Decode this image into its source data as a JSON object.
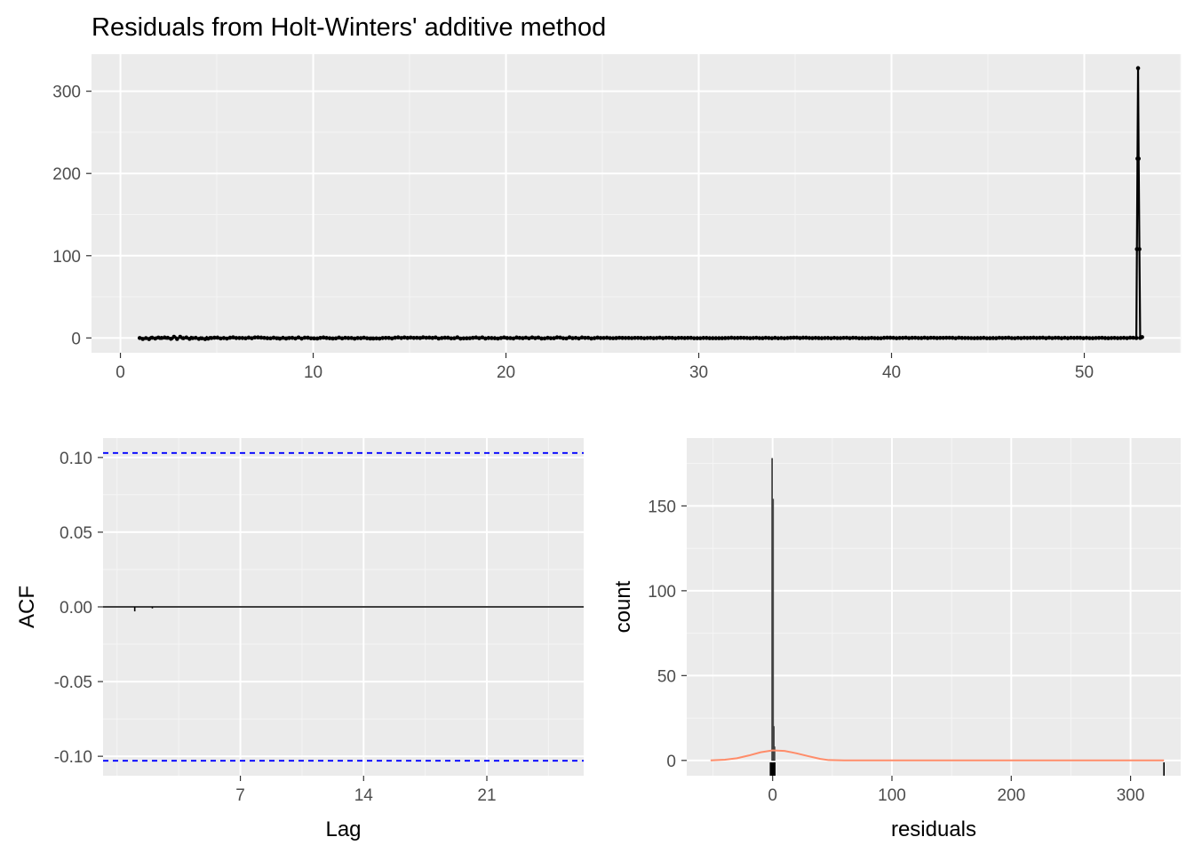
{
  "title": "Residuals from Holt-Winters' additive method",
  "chart_data": [
    {
      "type": "line",
      "xlabel": "",
      "ylabel": "",
      "xlim": [
        -1.5,
        55
      ],
      "ylim": [
        -18,
        345
      ],
      "x_ticks": [
        0,
        10,
        20,
        30,
        40,
        50
      ],
      "y_ticks": [
        0,
        100,
        200,
        300
      ],
      "grid": true,
      "noise_range": [
        1.0,
        52.7
      ],
      "spike": {
        "x": [
          52.7,
          52.73,
          52.76,
          52.79,
          52.82,
          52.86,
          52.9,
          53.0
        ],
        "y": [
          0,
          108,
          218,
          328,
          218,
          108,
          0,
          1
        ]
      }
    },
    {
      "type": "bar",
      "xlabel": "Lag",
      "ylabel": "ACF",
      "xlim": [
        -0.8,
        26.5
      ],
      "ylim": [
        -0.113,
        0.113
      ],
      "x_ticks": [
        7,
        14,
        21
      ],
      "y_tick_values": [
        0.1,
        0.05,
        0.0,
        -0.05,
        -0.1
      ],
      "y_tick_labels": [
        "0.10",
        "0.05",
        "0.00",
        "-0.05",
        "-0.10"
      ],
      "lags": [
        1,
        2,
        3,
        4,
        5,
        6,
        7,
        8,
        9,
        10,
        11,
        12,
        13,
        14,
        15,
        16,
        17,
        18,
        19,
        20,
        21,
        22,
        23,
        24,
        25,
        26
      ],
      "values": [
        -0.003,
        -0.001,
        0.0,
        0.0,
        0.0,
        0.0,
        0.0,
        0.0,
        0.0,
        0.0,
        0.0,
        0.0,
        0.0,
        0.0,
        0.0,
        0.0,
        0.0,
        0.0,
        0.0,
        0.0,
        0.0,
        0.0,
        0.0,
        0.0,
        0.0,
        0.0
      ],
      "ci": 0.103,
      "ci_color": "#0000ff",
      "grid": true
    },
    {
      "type": "bar",
      "xlabel": "residuals",
      "ylabel": "count",
      "xlim": [
        -72,
        342
      ],
      "ylim": [
        -9,
        190
      ],
      "x_ticks": [
        0,
        100,
        200,
        300
      ],
      "y_ticks": [
        0,
        50,
        100,
        150
      ],
      "bins": [
        {
          "x": -0.4,
          "count": 178
        },
        {
          "x": 0.4,
          "count": 154
        },
        {
          "x": 1.0,
          "count": 20
        },
        {
          "x": 1.6,
          "count": 8
        }
      ],
      "density_color": "#ff8c69",
      "density": {
        "x": [
          -52,
          -40,
          -30,
          -20,
          -10,
          0,
          10,
          20,
          30,
          40,
          47,
          60,
          100,
          200,
          300,
          328
        ],
        "y": [
          0.0,
          0.4,
          1.3,
          2.9,
          4.8,
          5.9,
          5.6,
          4.2,
          2.5,
          0.9,
          0.2,
          0.0,
          0.0,
          0.0,
          0.0,
          0.0
        ]
      },
      "rug": [
        -1.5,
        -1,
        -0.5,
        0,
        0.5,
        1,
        1.5,
        328
      ]
    }
  ]
}
